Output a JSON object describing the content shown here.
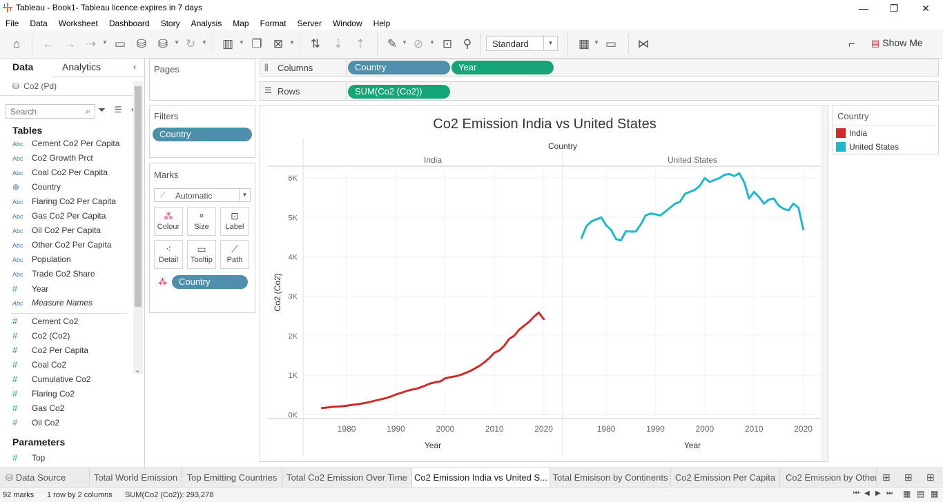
{
  "window": {
    "title": "Tableau - Book1- Tableau licence expires in 7 days",
    "minimize": "—",
    "restore": "❐",
    "close": "✕"
  },
  "menu": [
    "File",
    "Data",
    "Worksheet",
    "Dashboard",
    "Story",
    "Analysis",
    "Map",
    "Format",
    "Server",
    "Window",
    "Help"
  ],
  "toolbar": {
    "fit_select": "Standard",
    "show_me": "Show Me"
  },
  "data_pane": {
    "tabs": {
      "data": "Data",
      "analytics": "Analytics"
    },
    "datasource": "Co2 (Pd)",
    "search_placeholder": "Search",
    "tables_header": "Tables",
    "dimensions": [
      {
        "type": "Abc",
        "name": "Cement Co2 Per Capita"
      },
      {
        "type": "Abc",
        "name": "Co2 Growth Prct"
      },
      {
        "type": "Abc",
        "name": "Coal Co2 Per Capita"
      },
      {
        "type": "globe",
        "name": "Country"
      },
      {
        "type": "Abc",
        "name": "Flaring Co2 Per Capita"
      },
      {
        "type": "Abc",
        "name": "Gas Co2 Per Capita"
      },
      {
        "type": "Abc",
        "name": "Oil Co2 Per Capita"
      },
      {
        "type": "Abc",
        "name": "Other Co2 Per Capita"
      },
      {
        "type": "Abc",
        "name": "Population"
      },
      {
        "type": "Abc",
        "name": "Trade Co2 Share"
      },
      {
        "type": "#",
        "name": "Year"
      },
      {
        "type": "Abc",
        "name": "Measure Names"
      }
    ],
    "measures": [
      {
        "type": "#",
        "name": "Cement Co2"
      },
      {
        "type": "#",
        "name": "Co2 (Co2)"
      },
      {
        "type": "#",
        "name": "Co2 Per Capita"
      },
      {
        "type": "#",
        "name": "Coal Co2"
      },
      {
        "type": "#",
        "name": "Cumulative Co2"
      },
      {
        "type": "#",
        "name": "Flaring Co2"
      },
      {
        "type": "#",
        "name": "Gas Co2"
      },
      {
        "type": "#",
        "name": "Oil Co2"
      }
    ],
    "parameters_header": "Parameters",
    "parameters": [
      {
        "type": "#",
        "name": "Top"
      }
    ]
  },
  "pages": {
    "title": "Pages"
  },
  "filters": {
    "title": "Filters",
    "pills": [
      "Country"
    ]
  },
  "marks": {
    "title": "Marks",
    "type": "Automatic",
    "buttons": [
      "Colour",
      "Size",
      "Label",
      "Detail",
      "Tooltip",
      "Path"
    ],
    "pill": "Country"
  },
  "columns": {
    "label": "Columns",
    "pills": [
      "Country",
      "Year"
    ]
  },
  "rows": {
    "label": "Rows",
    "pills": [
      "SUM(Co2 (Co2))"
    ]
  },
  "legend": {
    "title": "Country",
    "items": [
      {
        "name": "India",
        "color": "#d12a2a"
      },
      {
        "name": "United States",
        "color": "#21b8c9"
      }
    ]
  },
  "sheet_tabs": {
    "data_source": "Data Source",
    "tabs": [
      "Total World Emission",
      "Top Emitting Countries",
      "Total Co2 Emission Over Time",
      "Co2 Emission India vs United S...",
      "Total Emisison by Continents",
      "Co2 Emission Per Capita",
      "Co2 Emission by Other F"
    ],
    "active": 3
  },
  "status": {
    "marks": "92 marks",
    "dims": "1 row by 2 columns",
    "sum": "SUM(Co2 (Co2)): 293,278"
  },
  "chart_data": {
    "type": "line",
    "title": "Co2 Emission India vs United States",
    "header": "Country",
    "panes": [
      "India",
      "United States"
    ],
    "xlabel": "Year",
    "ylabel": "Co2 (Co2)",
    "ylim": [
      -100,
      6300
    ],
    "yticks": [
      0,
      1000,
      2000,
      3000,
      4000,
      5000,
      6000
    ],
    "ytick_labels": [
      "0K",
      "1K",
      "2K",
      "3K",
      "4K",
      "5K",
      "6K"
    ],
    "xlim": [
      1972,
      2023
    ],
    "xticks": [
      1980,
      1990,
      2000,
      2010,
      2020
    ],
    "series": [
      {
        "name": "India",
        "color": "#d12a2a",
        "x": [
          1975,
          1976,
          1977,
          1978,
          1979,
          1980,
          1981,
          1982,
          1983,
          1984,
          1985,
          1986,
          1987,
          1988,
          1989,
          1990,
          1991,
          1992,
          1993,
          1994,
          1995,
          1996,
          1997,
          1998,
          1999,
          2000,
          2001,
          2002,
          2003,
          2004,
          2005,
          2006,
          2007,
          2008,
          2009,
          2010,
          2011,
          2012,
          2013,
          2014,
          2015,
          2016,
          2017,
          2018,
          2019,
          2020
        ],
        "y": [
          165,
          180,
          195,
          200,
          210,
          225,
          245,
          260,
          280,
          300,
          330,
          360,
          390,
          420,
          460,
          510,
          550,
          590,
          630,
          650,
          690,
          740,
          790,
          820,
          840,
          920,
          950,
          970,
          1000,
          1050,
          1100,
          1170,
          1240,
          1330,
          1440,
          1570,
          1630,
          1750,
          1920,
          2000,
          2150,
          2250,
          2350,
          2480,
          2590,
          2420
        ]
      },
      {
        "name": "United States",
        "color": "#21b8c9",
        "x": [
          1975,
          1976,
          1977,
          1978,
          1979,
          1980,
          1981,
          1982,
          1983,
          1984,
          1985,
          1986,
          1987,
          1988,
          1989,
          1990,
          1991,
          1992,
          1993,
          1994,
          1995,
          1996,
          1997,
          1998,
          1999,
          2000,
          2001,
          2002,
          2003,
          2004,
          2005,
          2006,
          2007,
          2008,
          2009,
          2010,
          2011,
          2012,
          2013,
          2014,
          2015,
          2016,
          2017,
          2018,
          2019,
          2020
        ],
        "y": [
          4480,
          4780,
          4900,
          4950,
          5000,
          4800,
          4680,
          4450,
          4420,
          4650,
          4640,
          4640,
          4820,
          5050,
          5100,
          5080,
          5050,
          5150,
          5250,
          5350,
          5400,
          5600,
          5650,
          5700,
          5800,
          6000,
          5900,
          5950,
          6000,
          6080,
          6100,
          6050,
          6120,
          5900,
          5480,
          5650,
          5520,
          5350,
          5450,
          5480,
          5300,
          5220,
          5180,
          5350,
          5250,
          4700
        ]
      }
    ]
  }
}
